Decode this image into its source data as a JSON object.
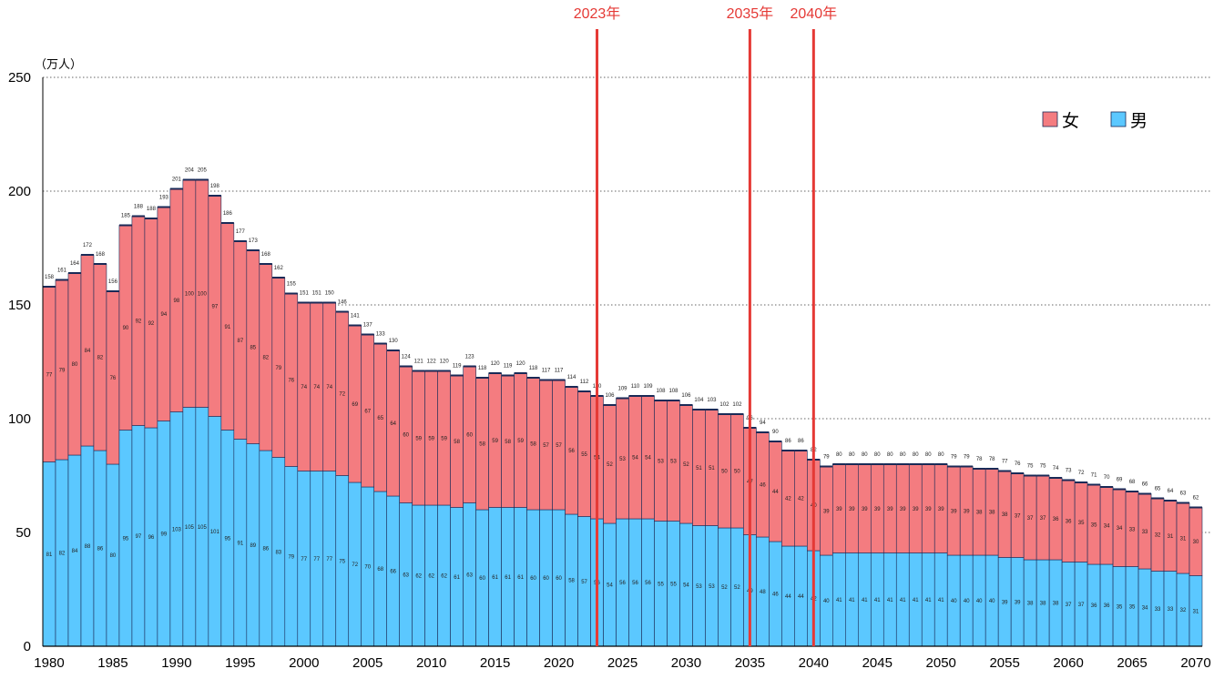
{
  "chart_data": {
    "type": "bar",
    "stacked": true,
    "y_unit_label": "（万人）",
    "ylim": [
      0,
      250
    ],
    "yticks": [
      0,
      50,
      100,
      150,
      200,
      250
    ],
    "x_tick_labels": [
      "1980",
      "1985",
      "1990",
      "1995",
      "2000",
      "2005",
      "2010",
      "2015",
      "2020",
      "2025",
      "2030",
      "2035",
      "2040",
      "2045",
      "2050",
      "2055",
      "2060",
      "2065",
      "2070"
    ],
    "grid": true,
    "legend_position": "top-right",
    "x": [
      1980,
      1981,
      1982,
      1983,
      1984,
      1985,
      1986,
      1987,
      1988,
      1989,
      1990,
      1991,
      1992,
      1993,
      1994,
      1995,
      1996,
      1997,
      1998,
      1999,
      2000,
      2001,
      2002,
      2003,
      2004,
      2005,
      2006,
      2007,
      2008,
      2009,
      2010,
      2011,
      2012,
      2013,
      2014,
      2015,
      2016,
      2017,
      2018,
      2019,
      2020,
      2021,
      2022,
      2023,
      2024,
      2025,
      2026,
      2027,
      2028,
      2029,
      2030,
      2031,
      2032,
      2033,
      2034,
      2035,
      2036,
      2037,
      2038,
      2039,
      2040,
      2041,
      2042,
      2043,
      2044,
      2045,
      2046,
      2047,
      2048,
      2049,
      2050,
      2051,
      2052,
      2053,
      2054,
      2055,
      2056,
      2057,
      2058,
      2059,
      2060,
      2061,
      2062,
      2063,
      2064,
      2065,
      2066,
      2067,
      2068,
      2069,
      2070
    ],
    "totals": [
      158,
      161,
      164,
      172,
      168,
      156,
      185,
      188,
      188,
      193,
      201,
      204,
      205,
      198,
      186,
      177,
      173,
      168,
      162,
      155,
      151,
      151,
      150,
      146,
      141,
      137,
      133,
      130,
      124,
      121,
      122,
      120,
      119,
      123,
      118,
      120,
      119,
      120,
      118,
      117,
      117,
      114,
      112,
      110,
      106,
      109,
      110,
      109,
      108,
      108,
      106,
      104,
      103,
      102,
      102,
      96,
      94,
      90,
      86,
      86,
      82,
      79,
      80,
      80,
      80,
      80,
      80,
      80,
      80,
      80,
      80,
      79,
      79,
      78,
      78,
      77,
      76,
      75,
      75,
      74,
      73,
      72,
      71,
      70,
      69,
      68,
      66,
      65,
      64,
      63,
      62
    ],
    "series": [
      {
        "name": "男",
        "color": "#5bc8ff",
        "values": [
          81,
          82,
          84,
          88,
          86,
          80,
          95,
          97,
          96,
          99,
          103,
          105,
          105,
          101,
          95,
          91,
          89,
          86,
          83,
          79,
          77,
          77,
          77,
          75,
          72,
          70,
          68,
          66,
          63,
          62,
          62,
          62,
          61,
          63,
          60,
          61,
          61,
          61,
          60,
          60,
          60,
          58,
          57,
          56,
          54,
          56,
          56,
          56,
          55,
          55,
          54,
          53,
          53,
          52,
          52,
          49,
          48,
          46,
          44,
          44,
          42,
          40,
          41,
          41,
          41,
          41,
          41,
          41,
          41,
          41,
          41,
          40,
          40,
          40,
          40,
          39,
          39,
          38,
          38,
          38,
          37,
          37,
          36,
          36,
          35,
          35,
          34,
          33,
          33,
          32,
          31
        ]
      },
      {
        "name": "女",
        "color": "#f47c80",
        "values": [
          77,
          79,
          80,
          84,
          82,
          76,
          90,
          92,
          92,
          94,
          98,
          100,
          100,
          97,
          91,
          87,
          85,
          82,
          79,
          76,
          74,
          74,
          74,
          72,
          69,
          67,
          65,
          64,
          60,
          59,
          59,
          59,
          58,
          60,
          58,
          59,
          58,
          59,
          58,
          57,
          57,
          56,
          55,
          54,
          52,
          53,
          54,
          54,
          53,
          53,
          52,
          51,
          51,
          50,
          50,
          47,
          46,
          44,
          42,
          42,
          40,
          39,
          39,
          39,
          39,
          39,
          39,
          39,
          39,
          39,
          39,
          39,
          39,
          38,
          38,
          38,
          37,
          37,
          37,
          36,
          36,
          35,
          35,
          34,
          34,
          33,
          33,
          32,
          31,
          31,
          30
        ]
      }
    ],
    "annotations": [
      {
        "x": 2023.5,
        "label": "2023年",
        "color": "#e53935"
      },
      {
        "x": 2035.5,
        "label": "2035年",
        "color": "#e53935"
      },
      {
        "x": 2040.5,
        "label": "2040年",
        "color": "#e53935"
      }
    ]
  }
}
